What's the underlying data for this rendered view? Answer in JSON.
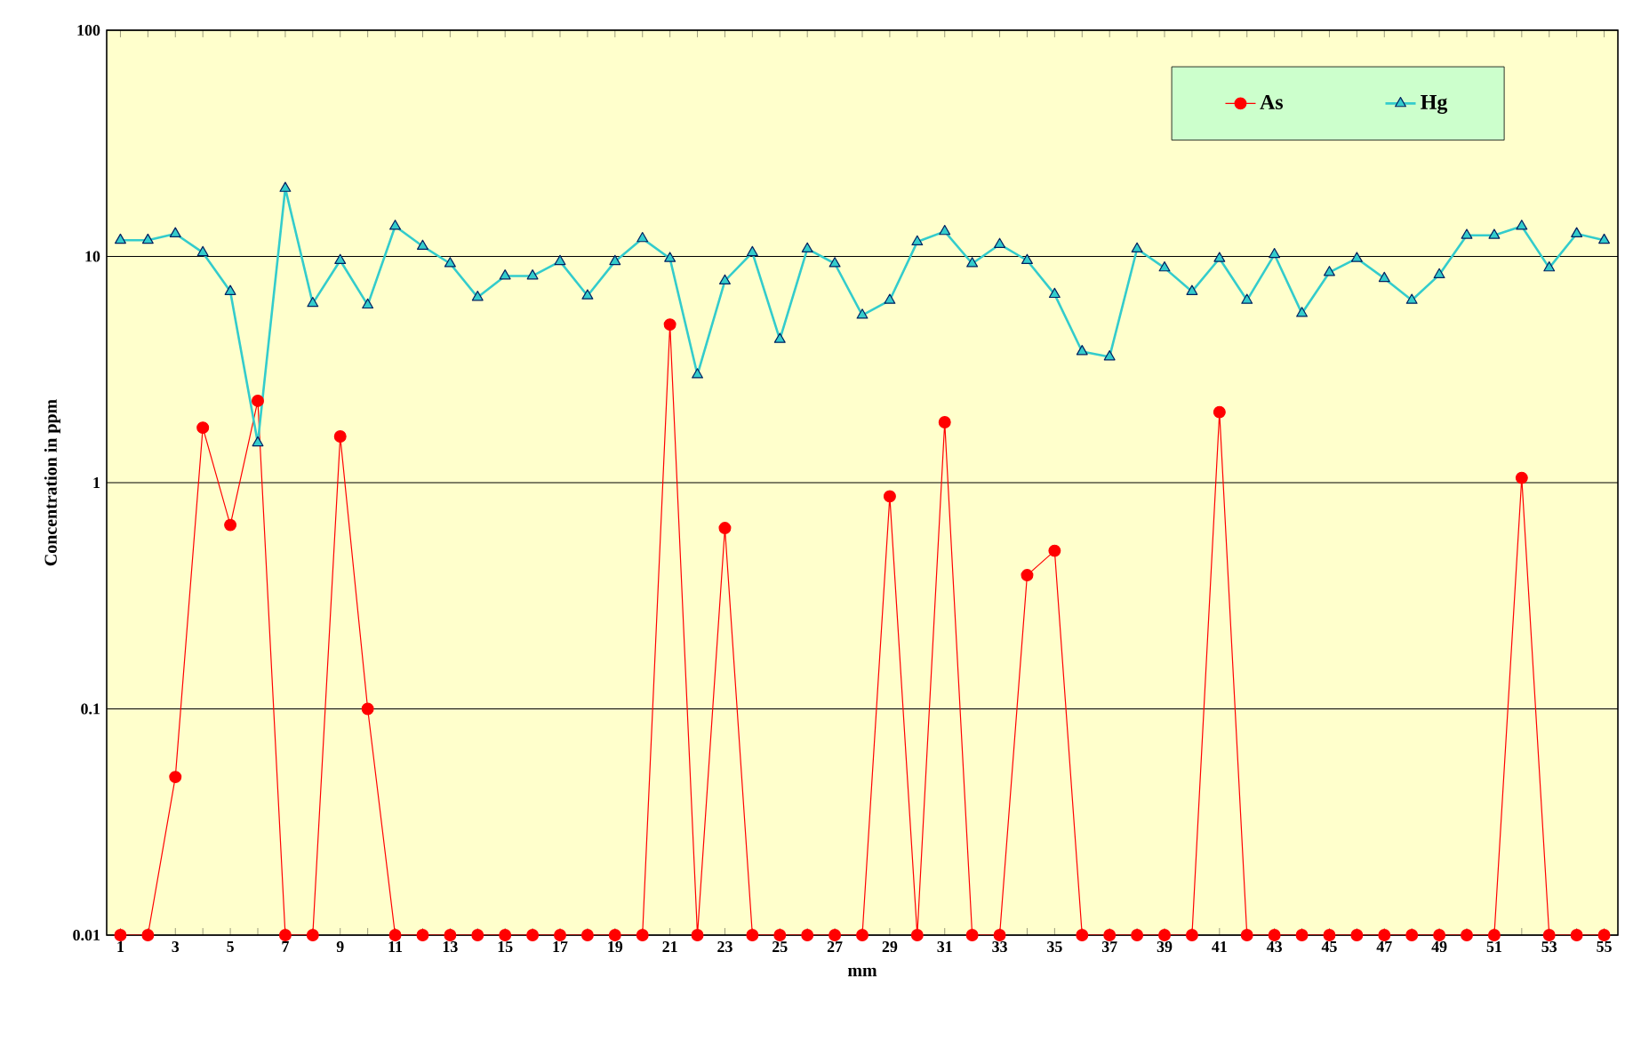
{
  "chart_data": {
    "type": "line",
    "xlabel": "mm",
    "ylabel": "Concentration in ppm",
    "log": "y",
    "grid": "y",
    "legend": "top right",
    "line_style": "solid",
    "x": [
      1,
      2,
      3,
      4,
      5,
      6,
      7,
      8,
      9,
      10,
      11,
      12,
      13,
      14,
      15,
      16,
      17,
      18,
      19,
      20,
      21,
      22,
      23,
      24,
      25,
      26,
      27,
      28,
      29,
      30,
      31,
      32,
      33,
      34,
      35,
      36,
      37,
      38,
      39,
      40,
      41,
      42,
      43,
      44,
      45,
      46,
      47,
      48,
      49,
      50,
      51,
      52,
      53,
      54,
      55
    ],
    "xlim": [
      0.5,
      55.5
    ],
    "xticks": [
      1,
      {
        "value": 2,
        "label": null
      },
      3,
      {
        "value": 4,
        "label": null
      },
      5,
      {
        "value": 6,
        "label": null
      },
      7,
      {
        "value": 8,
        "label": null
      },
      9,
      {
        "value": 10,
        "label": null
      },
      11,
      {
        "value": 12,
        "label": null
      },
      13,
      {
        "value": 14,
        "label": null
      },
      15,
      {
        "value": 16,
        "label": null
      },
      17,
      {
        "value": 18,
        "label": null
      },
      19,
      {
        "value": 20,
        "label": null
      },
      21,
      {
        "value": 22,
        "label": null
      },
      23,
      {
        "value": 24,
        "label": null
      },
      25,
      {
        "value": 26,
        "label": null
      },
      27,
      {
        "value": 28,
        "label": null
      },
      29,
      {
        "value": 30,
        "label": null
      },
      31,
      {
        "value": 32,
        "label": null
      },
      33,
      {
        "value": 34,
        "label": null
      },
      35,
      {
        "value": 36,
        "label": null
      },
      37,
      {
        "value": 38,
        "label": null
      },
      39,
      {
        "value": 40,
        "label": null
      },
      41,
      {
        "value": 42,
        "label": null
      },
      43,
      {
        "value": 44,
        "label": null
      },
      45,
      {
        "value": 46,
        "label": null
      },
      47,
      {
        "value": 48,
        "label": null
      },
      49,
      {
        "value": 50,
        "label": null
      },
      51,
      {
        "value": 52,
        "label": null
      },
      53,
      {
        "value": 54,
        "label": null
      },
      55
    ],
    "ylim": [
      0.01,
      100
    ],
    "yticks": [
      0.01,
      0.1,
      1,
      10,
      100
    ],
    "series": [
      {
        "name": "As",
        "color": "#ff0000",
        "marker": "circle",
        "values": [
          0.01,
          0.01,
          0.05,
          1.75,
          0.65,
          2.3,
          0.01,
          0.01,
          1.6,
          0.1,
          0.01,
          0.01,
          0.01,
          0.01,
          0.01,
          0.01,
          0.01,
          0.01,
          0.01,
          0.01,
          5.0,
          0.01,
          0.63,
          0.01,
          0.01,
          0.01,
          0.01,
          0.01,
          0.87,
          0.01,
          1.85,
          0.01,
          0.01,
          0.39,
          0.5,
          0.01,
          0.01,
          0.01,
          0.01,
          0.01,
          2.05,
          0.01,
          0.01,
          0.01,
          0.01,
          0.01,
          0.01,
          0.01,
          0.01,
          0.01,
          0.01,
          1.05,
          0.01,
          0.01,
          0.01
        ]
      },
      {
        "name": "Hg",
        "color": "#33cccc",
        "marker": "triangle",
        "values": [
          11.8,
          11.8,
          12.6,
          10.4,
          7,
          1.5,
          20,
          6.2,
          9.6,
          6.1,
          13.6,
          11.1,
          9.3,
          6.6,
          8.2,
          8.2,
          9.5,
          6.7,
          9.5,
          12,
          9.8,
          3.0,
          7.8,
          10.4,
          4.3,
          10.8,
          9.3,
          5.5,
          6.4,
          11.6,
          12.9,
          9.3,
          11.3,
          9.6,
          6.8,
          3.8,
          3.6,
          10.8,
          8.9,
          7,
          9.8,
          6.4,
          10.2,
          5.6,
          8.5,
          9.8,
          8.0,
          6.4,
          8.3,
          12.4,
          12.4,
          13.6,
          8.9,
          12.6,
          11.8
        ]
      }
    ]
  }
}
